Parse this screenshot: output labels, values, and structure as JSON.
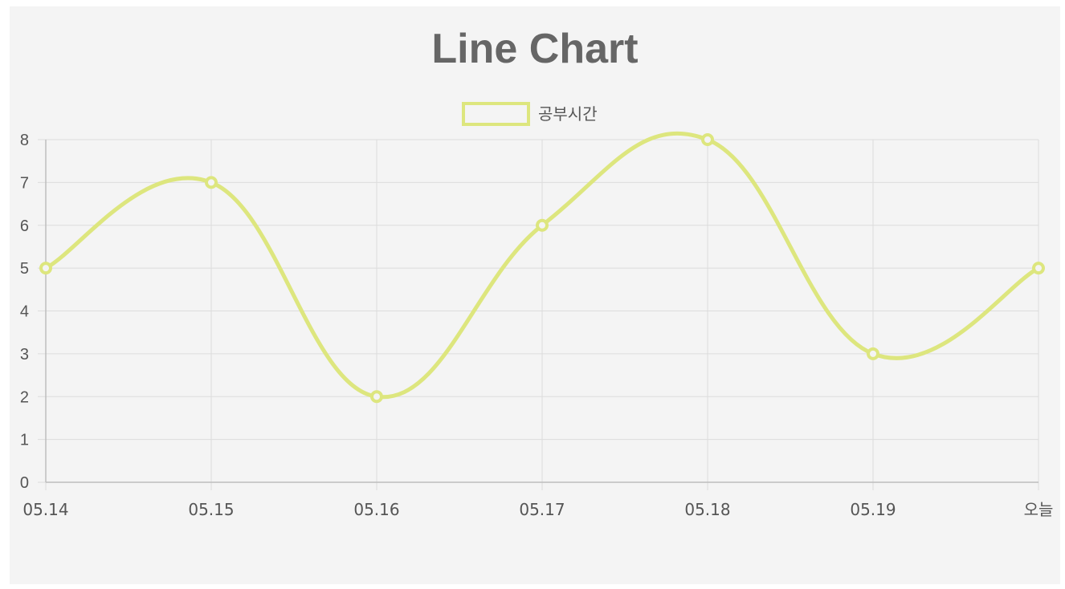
{
  "chart_data": {
    "type": "line",
    "title": "Line Chart",
    "categories": [
      "05.14",
      "05.15",
      "05.16",
      "05.17",
      "05.18",
      "05.19",
      "오늘"
    ],
    "series": [
      {
        "name": "공부시간",
        "values": [
          5,
          7,
          2,
          6,
          8,
          3,
          5
        ]
      }
    ],
    "ylim": [
      0,
      8
    ],
    "yticks": [
      0,
      1,
      2,
      3,
      4,
      5,
      6,
      7,
      8
    ],
    "grid": true,
    "legend_position": "top-center",
    "line_style": "smooth",
    "colors": {
      "series": "#dde67e",
      "panel_bg": "#f4f4f4",
      "grid": "#dcdcdc",
      "axis": "#bdbdbd",
      "text": "#555555",
      "title": "#666666"
    }
  }
}
